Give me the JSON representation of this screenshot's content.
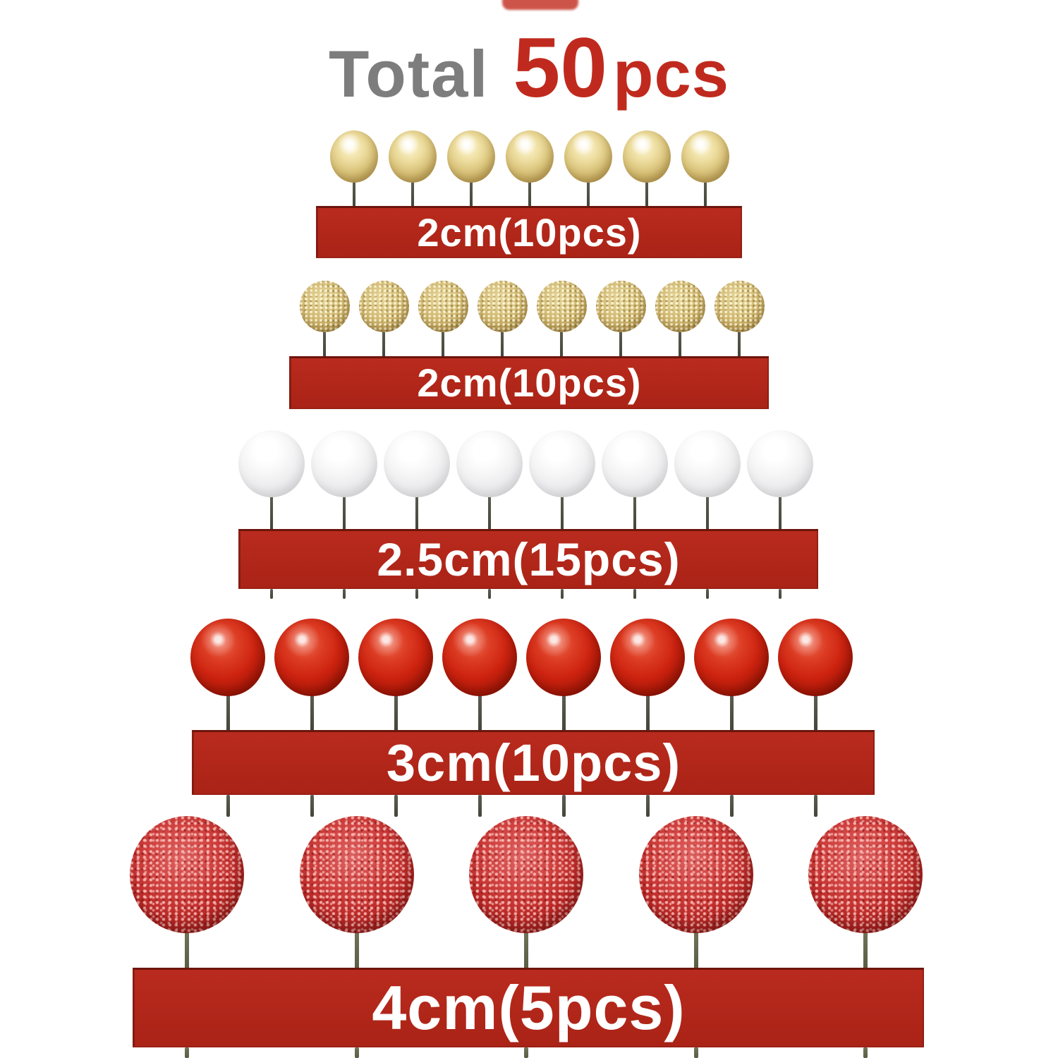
{
  "title": {
    "prefix": "Total",
    "count": "50",
    "unit": "pcs"
  },
  "rows": [
    {
      "id": "gold-shiny-balls",
      "style": "gold",
      "ball_count": 7,
      "label": "2cm(10pcs)",
      "size": "2cm",
      "pieces": "10pcs"
    },
    {
      "id": "gold-glitter-balls",
      "style": "goldglitter",
      "ball_count": 8,
      "label": "2cm(10pcs)",
      "size": "2cm",
      "pieces": "10pcs"
    },
    {
      "id": "white-balls",
      "style": "white",
      "ball_count": 8,
      "label": "2.5cm(15pcs)",
      "size": "2.5cm",
      "pieces": "15pcs"
    },
    {
      "id": "red-balls",
      "style": "red",
      "ball_count": 8,
      "label": "3cm(10pcs)",
      "size": "3cm",
      "pieces": "10pcs"
    },
    {
      "id": "red-glitter-balls",
      "style": "redglitter",
      "ball_count": 5,
      "label": "4cm(5pcs)",
      "size": "4cm",
      "pieces": "5pcs"
    }
  ],
  "palette": {
    "background": "#ffffff",
    "banner_red": "#b2281c",
    "banner_edge_dark": "#6f140d",
    "banner_text": "#ffffff",
    "title_gray": "#7d7d7d",
    "title_red": "#c02a1e",
    "gold_ball": "#d9c379",
    "gold_glitter_ball": "#cdb672",
    "white_ball": "#f3f3f3",
    "red_ball": "#cb2513",
    "red_glitter_ball": "#c73936",
    "stick": "#4f4f45",
    "stick_olive": "#6d6f52"
  }
}
